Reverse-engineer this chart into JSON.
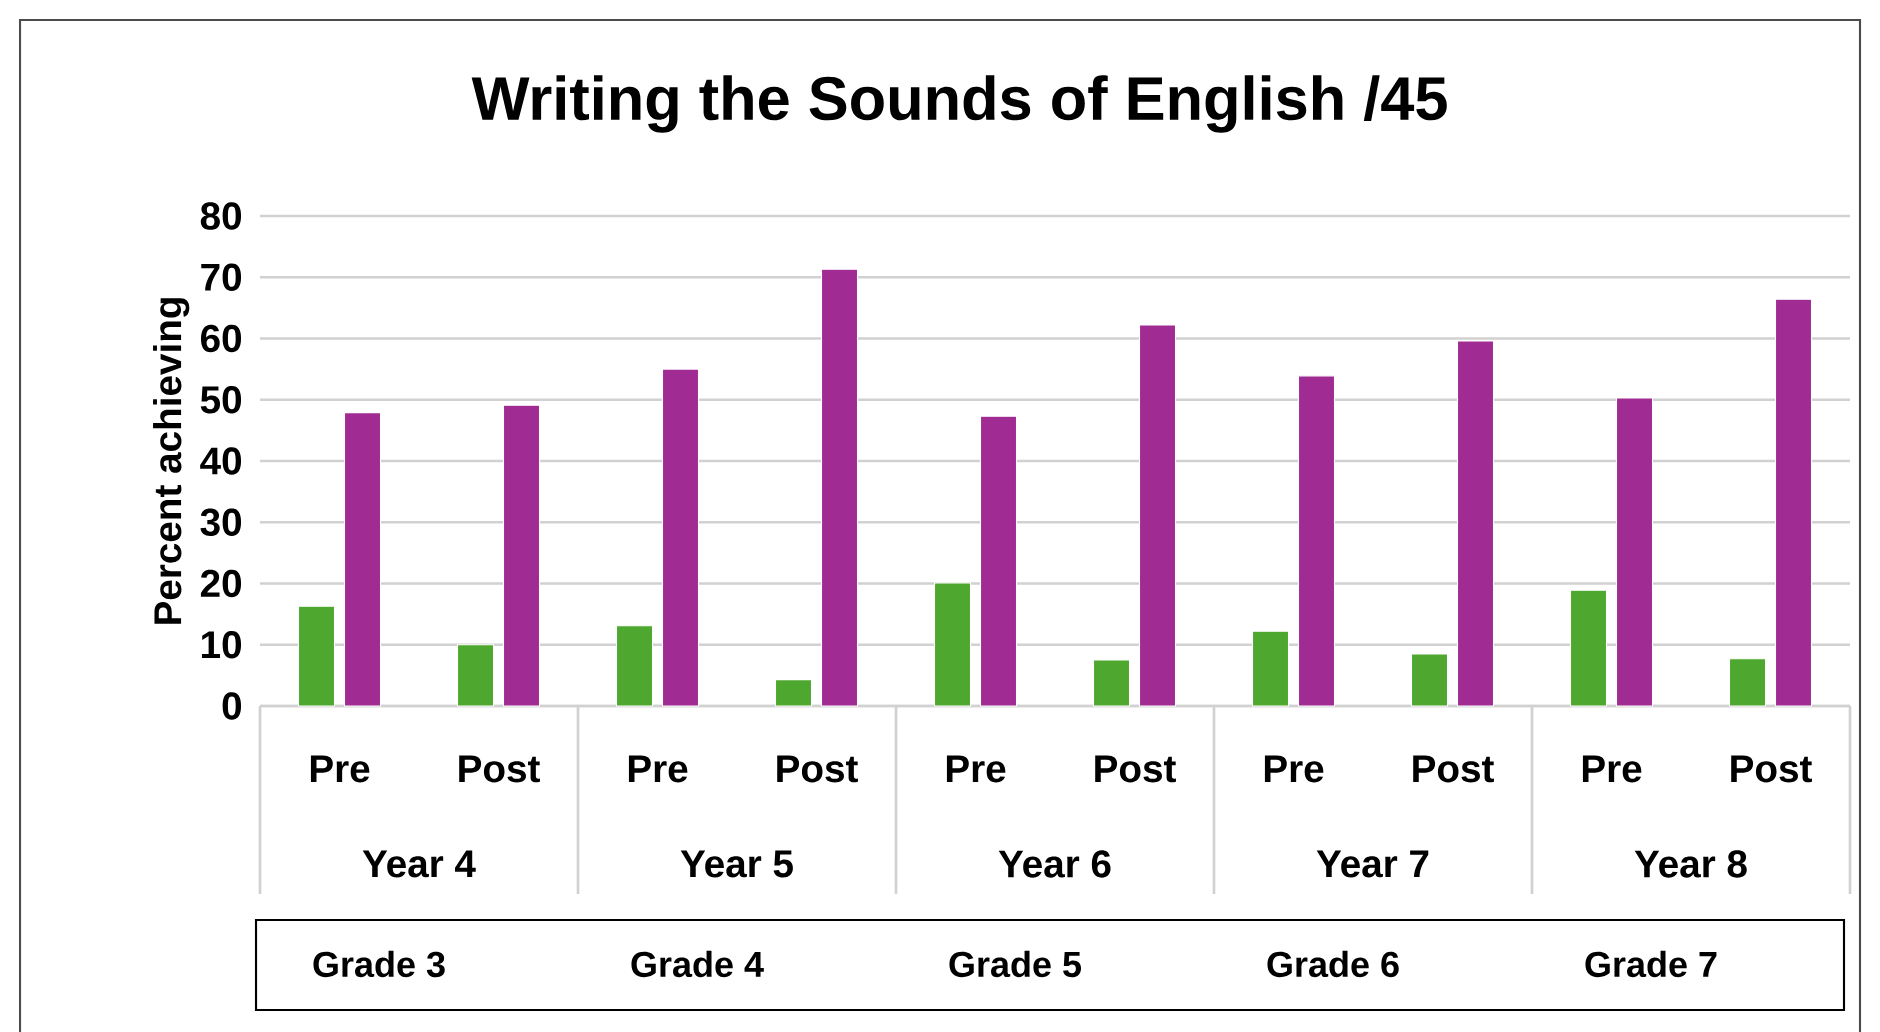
{
  "chart_data": {
    "type": "bar",
    "title": "Writing the Sounds of English /45",
    "ylabel": "Percent achieving",
    "categories": [
      "Pre",
      "Post",
      "Pre",
      "Post",
      "Pre",
      "Post",
      "Pre",
      "Post",
      "Pre",
      "Post"
    ],
    "series": [
      {
        "color": "#4ea72e",
        "values": [
          16.3,
          10.0,
          13.1,
          4.3,
          20.1,
          7.5,
          12.2,
          8.5,
          18.9,
          7.7
        ]
      },
      {
        "color": "#a02b93",
        "values": [
          47.9,
          49.1,
          55.0,
          71.3,
          47.3,
          62.2,
          53.9,
          59.6,
          50.3,
          66.4
        ]
      }
    ],
    "annotations": [
      "Year 4",
      "Year 5",
      "Year 6",
      "Year 7",
      "Year 8",
      "Grade 3",
      "Grade 4",
      "Grade 5",
      "Grade 6",
      "Grade 7"
    ],
    "ylim": [
      0,
      80
    ],
    "yticks": [
      0,
      10,
      20,
      30,
      40,
      50,
      60,
      70,
      80
    ],
    "grid": "y"
  }
}
